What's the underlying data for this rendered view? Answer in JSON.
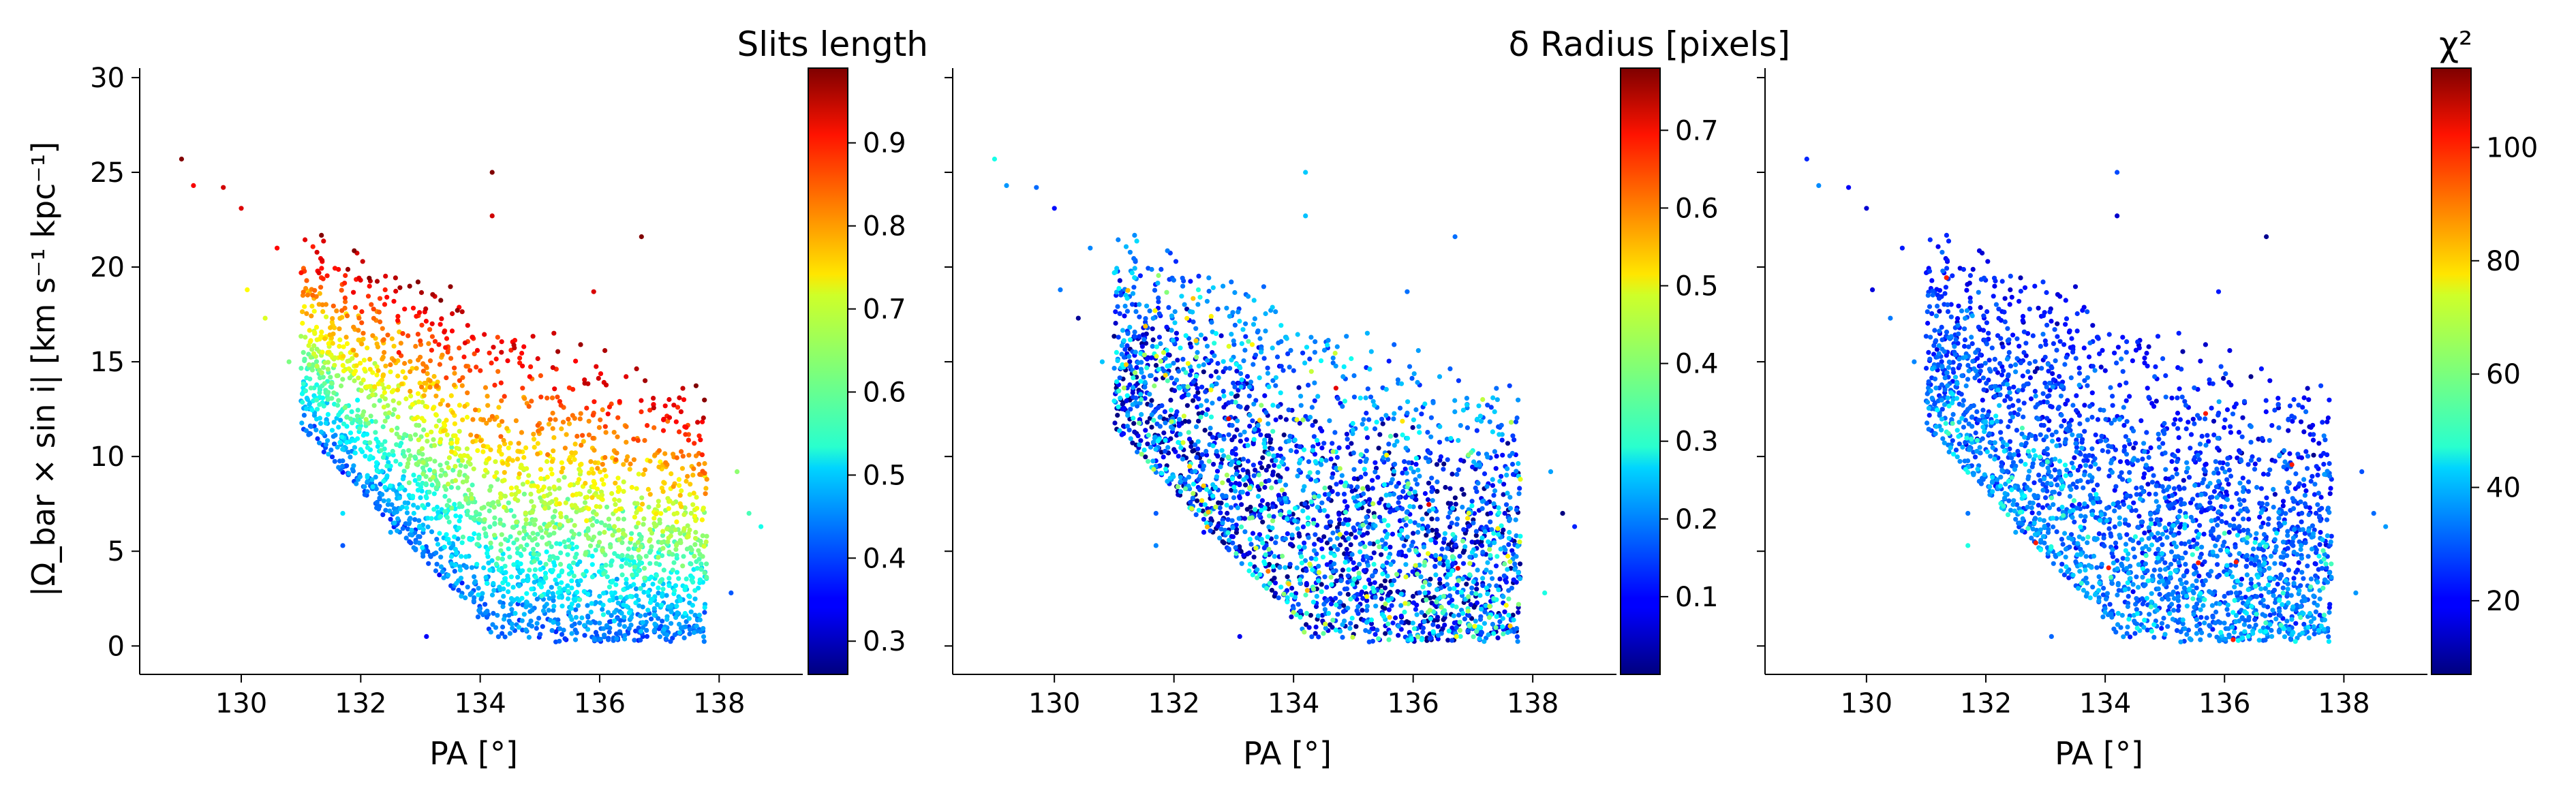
{
  "chart_data": [
    {
      "type": "scatter",
      "xlabel": "PA [°]",
      "ylabel": "|Ω_bar × sin i|   [km s⁻¹ kpc⁻¹]",
      "xlim": [
        128.3,
        139.4
      ],
      "ylim": [
        -1.5,
        30.5
      ],
      "xticks": [
        130,
        132,
        134,
        136,
        138
      ],
      "yticks": [
        0,
        5,
        10,
        15,
        20,
        25,
        30
      ],
      "colorbar": {
        "title": "Slits length",
        "colormap": "jet",
        "range": [
          0.26,
          0.99
        ],
        "ticks": [
          0.3,
          0.4,
          0.5,
          0.6,
          0.7,
          0.8,
          0.9
        ]
      }
    },
    {
      "type": "scatter",
      "xlabel": "PA [°]",
      "xlim": [
        128.3,
        139.4
      ],
      "ylim": [
        -1.5,
        30.5
      ],
      "xticks": [
        130,
        132,
        134,
        136,
        138
      ],
      "colorbar": {
        "title": "δ Radius [pixels]",
        "colormap": "jet",
        "range": [
          0.0,
          0.78
        ],
        "ticks": [
          0.1,
          0.2,
          0.3,
          0.4,
          0.5,
          0.6,
          0.7
        ]
      }
    },
    {
      "type": "scatter",
      "xlabel": "PA [°]",
      "xlim": [
        128.3,
        139.4
      ],
      "ylim": [
        -1.5,
        30.5
      ],
      "xticks": [
        130,
        132,
        134,
        136,
        138
      ],
      "colorbar": {
        "title": "χ²",
        "colormap": "jet",
        "range": [
          7,
          114
        ],
        "ticks": [
          20,
          40,
          60,
          80,
          100
        ]
      }
    }
  ]
}
